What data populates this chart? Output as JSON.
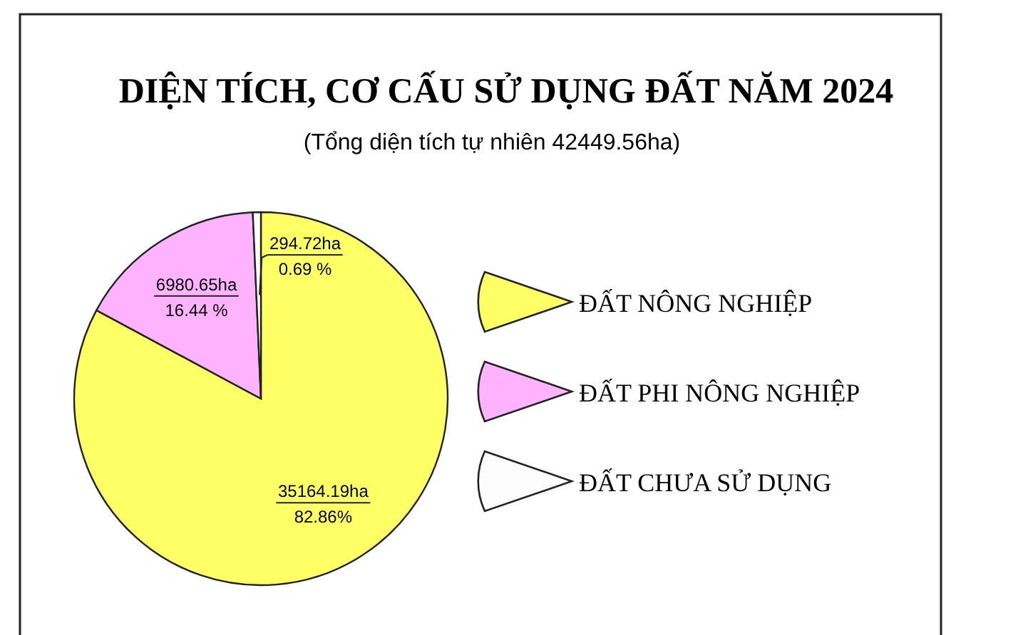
{
  "chart_data": {
    "type": "pie",
    "title": "DIỆN TÍCH, CƠ CẤU SỬ DỤNG ĐẤT NĂM 2024",
    "subtitle": "(Tổng diện tích tự nhiên 42449.56ha)",
    "categories": [
      "ĐẤT NÔNG NGHIỆP",
      "ĐẤT PHI NÔNG NGHIỆP",
      "ĐẤT CHƯA SỬ DỤNG"
    ],
    "values": [
      35164.19,
      6980.65,
      294.72
    ],
    "value_labels": [
      "35164.19ha\n82.86%",
      "6980.65ha\n16.44 %",
      "294.72ha\n0.69 %"
    ],
    "colors": [
      "#ffff66",
      "#ffb3ff",
      "#fdfdfd"
    ],
    "legend": "right"
  }
}
